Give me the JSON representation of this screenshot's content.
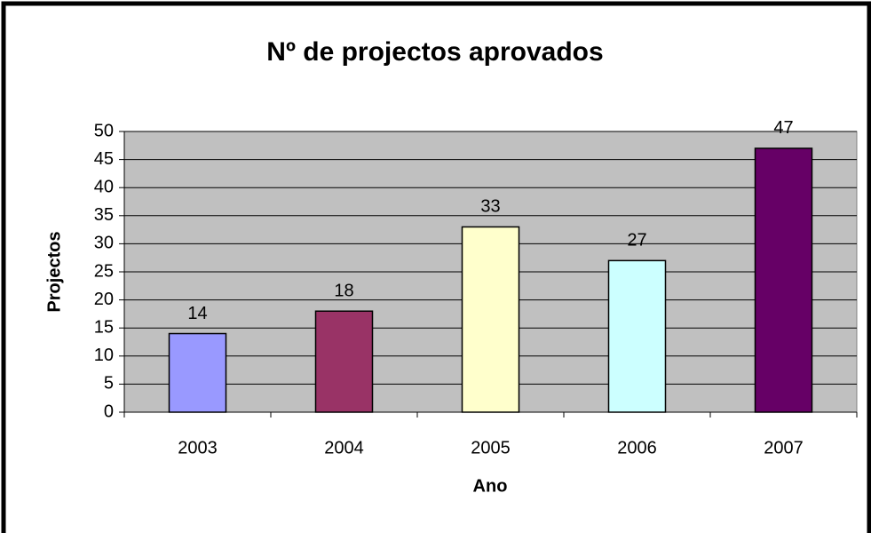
{
  "chart_data": {
    "type": "bar",
    "title": "Nº de projectos aprovados",
    "x_label": "Ano",
    "y_label": "Projectos",
    "categories": [
      "2003",
      "2004",
      "2005",
      "2006",
      "2007"
    ],
    "values": [
      14,
      18,
      33,
      27,
      47
    ],
    "colors": [
      "#9999ff",
      "#993366",
      "#ffffcc",
      "#ccffff",
      "#660066"
    ],
    "ylim": [
      0,
      50
    ],
    "yticks": [
      0,
      5,
      10,
      15,
      20,
      25,
      30,
      35,
      40,
      45,
      50
    ],
    "grid": true
  }
}
